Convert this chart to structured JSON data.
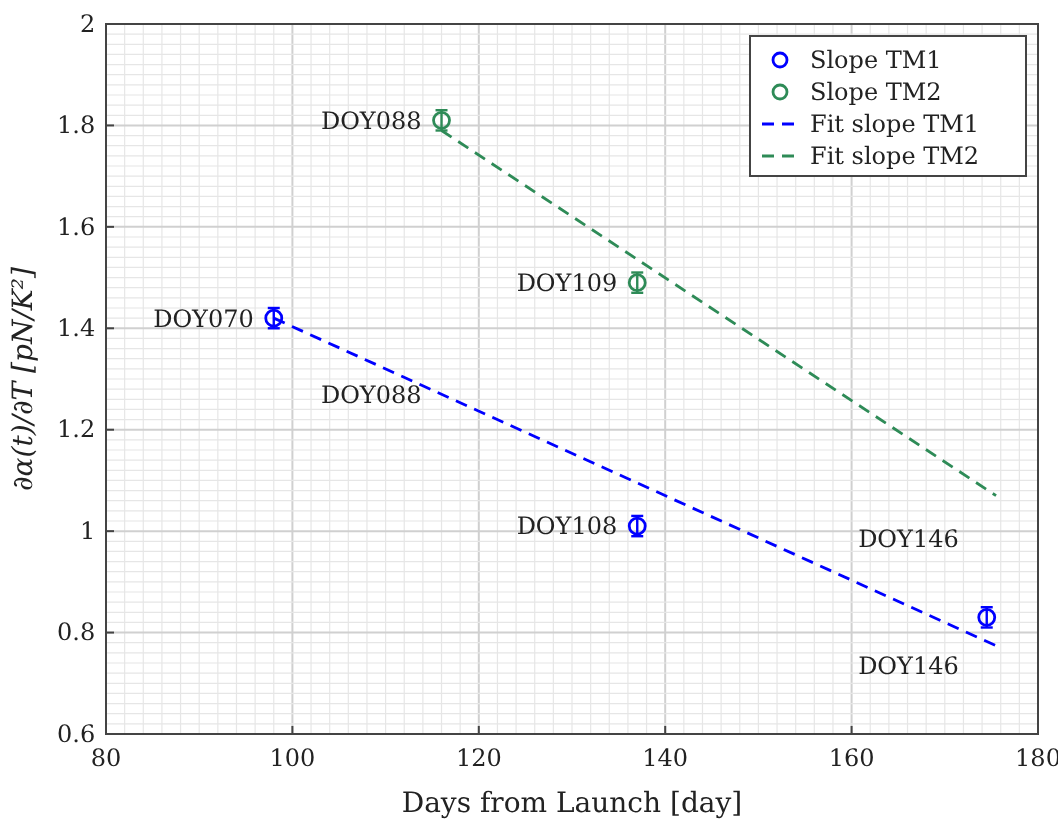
{
  "chart_data": {
    "type": "scatter",
    "xlabel": "Days from Launch [day]",
    "ylabel": "∂α(t)/∂T [pN/K²]",
    "xlim": [
      80,
      180
    ],
    "xticks": [
      80,
      100,
      120,
      140,
      160,
      180
    ],
    "ylim": [
      0.6,
      2
    ],
    "yticks": [
      0.6,
      0.8,
      1,
      1.2,
      1.4,
      1.6,
      1.8,
      2
    ],
    "grid": true,
    "legend": "top right",
    "series": [
      {
        "name": "Slope TM1",
        "marker": "circle",
        "color": "#0000ff",
        "x": [
          98,
          137,
          174.5
        ],
        "values": [
          1.42,
          1.01,
          0.83
        ],
        "errors": [
          0.02,
          0.02,
          0.02
        ]
      },
      {
        "name": "Slope TM2",
        "marker": "circle",
        "color": "#2e8b57",
        "x": [
          116,
          137
        ],
        "values": [
          1.81,
          1.49
        ],
        "errors": [
          0.02,
          0.02
        ]
      },
      {
        "name": "Fit slope TM1",
        "type": "line",
        "line_style": "dashed",
        "marker": "none",
        "color": "#0000ff",
        "x": [
          98,
          176
        ],
        "values": [
          1.42,
          0.77
        ]
      },
      {
        "name": "Fit slope TM2",
        "type": "line",
        "line_style": "dashed",
        "marker": "none",
        "color": "#2e8b57",
        "x": [
          116,
          175.5
        ],
        "values": [
          1.79,
          1.07
        ]
      }
    ],
    "annotations": [
      {
        "text": "DOY088",
        "x": 116,
        "y": 1.81
      },
      {
        "text": "DOY109",
        "x": 137,
        "y": 1.49
      },
      {
        "text": "DOY070",
        "x": 98,
        "y": 1.42
      },
      {
        "text": "DOY088",
        "x": 116,
        "y": 1.27
      },
      {
        "text": "DOY108",
        "x": 137,
        "y": 1.01
      },
      {
        "text": "DOY146",
        "x": 174.5,
        "y": 1.08
      },
      {
        "text": "DOY146",
        "x": 174.5,
        "y": 0.83
      }
    ]
  }
}
